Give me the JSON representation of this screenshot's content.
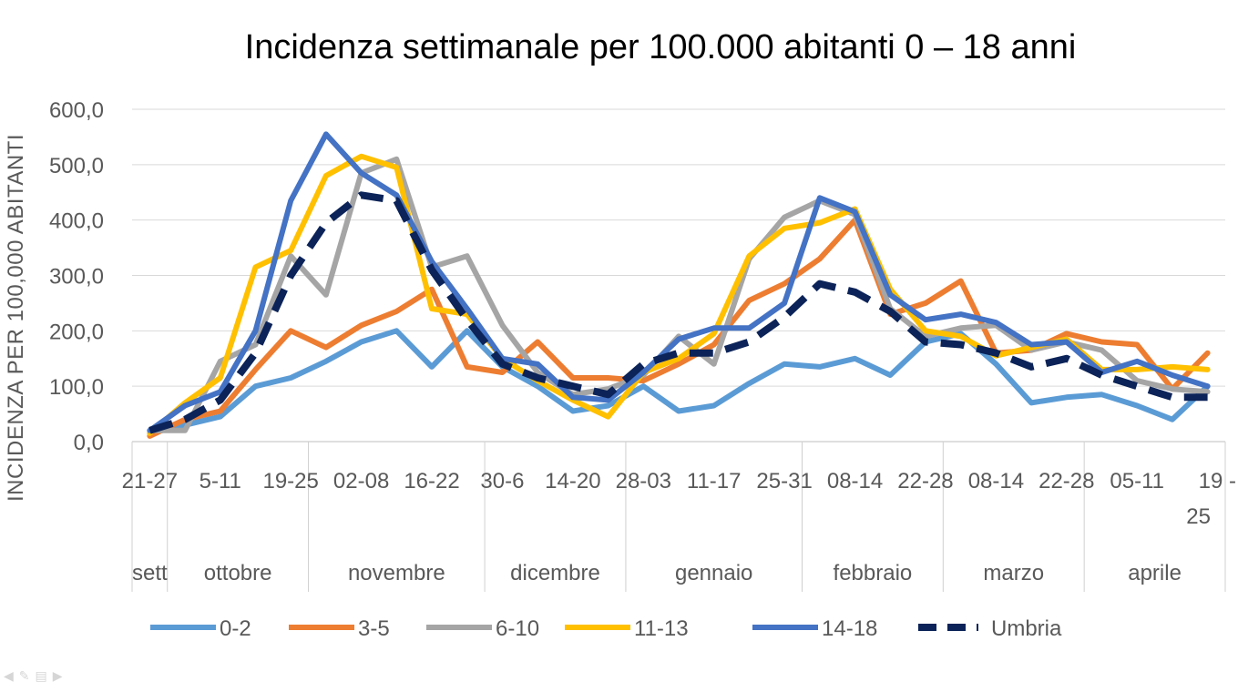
{
  "chart_data": {
    "type": "line",
    "title": "Incidenza settimanale per 100.000 abitanti 0 – 18 anni",
    "ylabel": "INCIDENZA PER 100,000 ABITANTI",
    "xlabel": "",
    "ylim": [
      0,
      600
    ],
    "yticks": [
      0,
      100,
      200,
      300,
      400,
      500,
      600
    ],
    "ytick_labels": [
      "0,0",
      "100,0",
      "200,0",
      "300,0",
      "400,0",
      "500,0",
      "600,0"
    ],
    "grid": true,
    "legend_position": "bottom",
    "x_labels": [
      {
        "index": 0,
        "text": "21-27"
      },
      {
        "index": 2,
        "text": "5-11"
      },
      {
        "index": 4,
        "text": "19-25"
      },
      {
        "index": 6,
        "text": "02-08"
      },
      {
        "index": 8,
        "text": "16-22"
      },
      {
        "index": 10,
        "text": "30-6"
      },
      {
        "index": 12,
        "text": "14-20"
      },
      {
        "index": 14,
        "text": "28-03"
      },
      {
        "index": 16,
        "text": "11-17"
      },
      {
        "index": 18,
        "text": "25-31"
      },
      {
        "index": 20,
        "text": "08-14"
      },
      {
        "index": 22,
        "text": "22-28"
      },
      {
        "index": 24,
        "text": "08-14"
      },
      {
        "index": 26,
        "text": "22-28"
      },
      {
        "index": 28,
        "text": "05-11"
      },
      {
        "index": 30,
        "text": "19 - 25"
      }
    ],
    "months": [
      {
        "label": "sett",
        "start": 0,
        "end": 0
      },
      {
        "label": "ottobre",
        "start": 1,
        "end": 4
      },
      {
        "label": "novembre",
        "start": 5,
        "end": 9
      },
      {
        "label": "dicembre",
        "start": 10,
        "end": 13
      },
      {
        "label": "gennaio",
        "start": 14,
        "end": 18
      },
      {
        "label": "febbraio",
        "start": 19,
        "end": 22
      },
      {
        "label": "marzo",
        "start": 23,
        "end": 26
      },
      {
        "label": "aprile",
        "start": 27,
        "end": 30
      }
    ],
    "series": [
      {
        "name": "0-2",
        "color": "#5b9bd5",
        "dashed": false,
        "values": [
          15,
          30,
          45,
          100,
          115,
          145,
          180,
          200,
          135,
          200,
          135,
          100,
          55,
          65,
          100,
          55,
          65,
          105,
          140,
          135,
          150,
          120,
          180,
          195,
          140,
          70,
          80,
          85,
          65,
          40,
          100
        ]
      },
      {
        "name": "3-5",
        "color": "#ed7d31",
        "dashed": false,
        "values": [
          10,
          40,
          55,
          130,
          200,
          170,
          210,
          235,
          275,
          135,
          125,
          180,
          115,
          115,
          110,
          140,
          175,
          255,
          285,
          330,
          400,
          230,
          250,
          290,
          160,
          165,
          195,
          180,
          175,
          95,
          160
        ]
      },
      {
        "name": "6-10",
        "color": "#a5a5a5",
        "dashed": false,
        "values": [
          20,
          20,
          145,
          175,
          335,
          265,
          485,
          510,
          315,
          335,
          210,
          125,
          85,
          95,
          120,
          190,
          140,
          330,
          405,
          435,
          410,
          240,
          190,
          205,
          210,
          165,
          180,
          165,
          110,
          95,
          90
        ]
      },
      {
        "name": "11-13",
        "color": "#ffc000",
        "dashed": false,
        "values": [
          15,
          70,
          115,
          315,
          345,
          480,
          515,
          495,
          240,
          230,
          150,
          110,
          75,
          45,
          125,
          150,
          195,
          335,
          385,
          395,
          420,
          275,
          200,
          190,
          155,
          170,
          185,
          130,
          130,
          135,
          130
        ]
      },
      {
        "name": "14-18",
        "color": "#4472c4",
        "dashed": false,
        "values": [
          20,
          65,
          90,
          200,
          435,
          555,
          485,
          445,
          325,
          240,
          150,
          140,
          80,
          75,
          125,
          185,
          205,
          205,
          250,
          440,
          415,
          265,
          220,
          230,
          215,
          175,
          180,
          125,
          145,
          120,
          100
        ]
      },
      {
        "name": "Umbria",
        "color": "#0b2358",
        "dashed": true,
        "values": [
          20,
          40,
          75,
          160,
          300,
          395,
          445,
          435,
          310,
          220,
          140,
          115,
          100,
          85,
          140,
          160,
          160,
          180,
          225,
          285,
          270,
          235,
          180,
          175,
          160,
          135,
          150,
          120,
          100,
          80,
          80
        ]
      }
    ]
  }
}
